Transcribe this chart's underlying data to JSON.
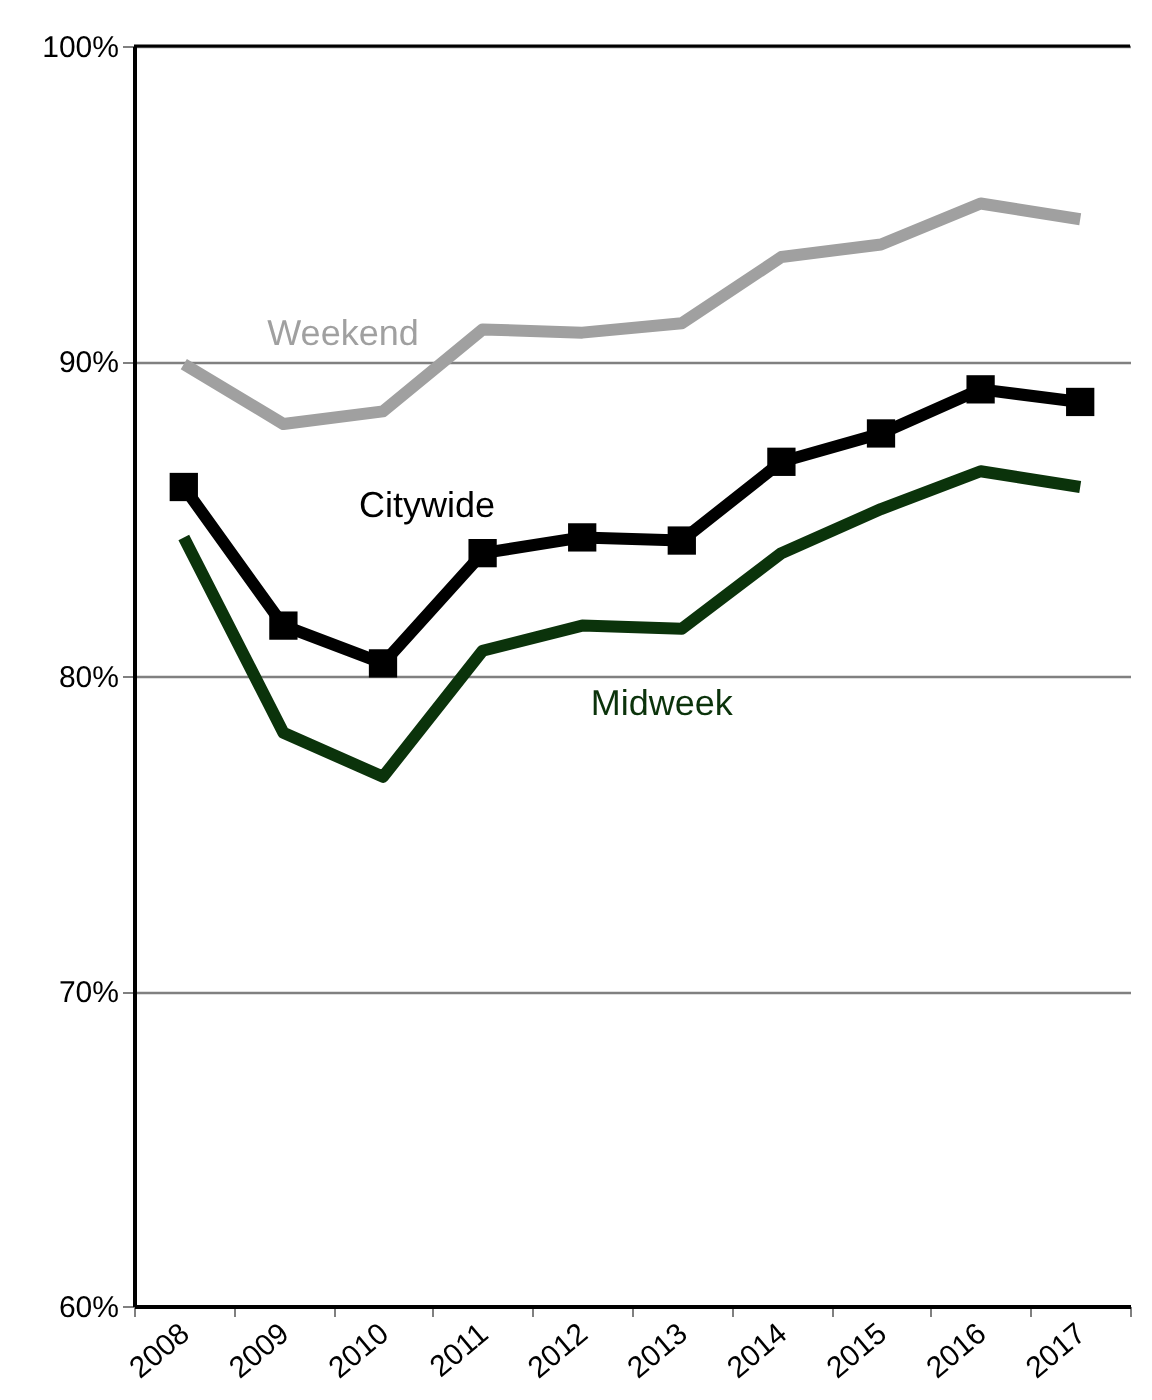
{
  "chart_data": {
    "type": "line",
    "categories": [
      "2008",
      "2009",
      "2010",
      "2011",
      "2012",
      "2013",
      "2014",
      "2015",
      "2016",
      "2017"
    ],
    "series": [
      {
        "name": "Weekend",
        "color": "#a0a0a0",
        "marker": "none",
        "values": [
          89.9,
          88.0,
          88.4,
          91.0,
          90.9,
          91.2,
          93.3,
          93.7,
          95.0,
          94.5
        ]
      },
      {
        "name": "Citywide",
        "color": "#000000",
        "marker": "square",
        "values": [
          86.0,
          81.6,
          80.4,
          83.9,
          84.4,
          84.3,
          86.8,
          87.7,
          89.1,
          88.7
        ]
      },
      {
        "name": "Midweek",
        "color": "#0b330b",
        "marker": "none",
        "values": [
          84.4,
          78.2,
          76.8,
          80.8,
          81.6,
          81.5,
          83.9,
          85.3,
          86.5,
          86.0
        ]
      }
    ],
    "ylim": [
      60,
      100
    ],
    "yticks": [
      {
        "value": 60,
        "label": "60%"
      },
      {
        "value": 70,
        "label": "70%"
      },
      {
        "value": 80,
        "label": "80%"
      },
      {
        "value": 90,
        "label": "90%"
      },
      {
        "value": 100,
        "label": "100%"
      }
    ],
    "grid": "y",
    "legend": false
  }
}
